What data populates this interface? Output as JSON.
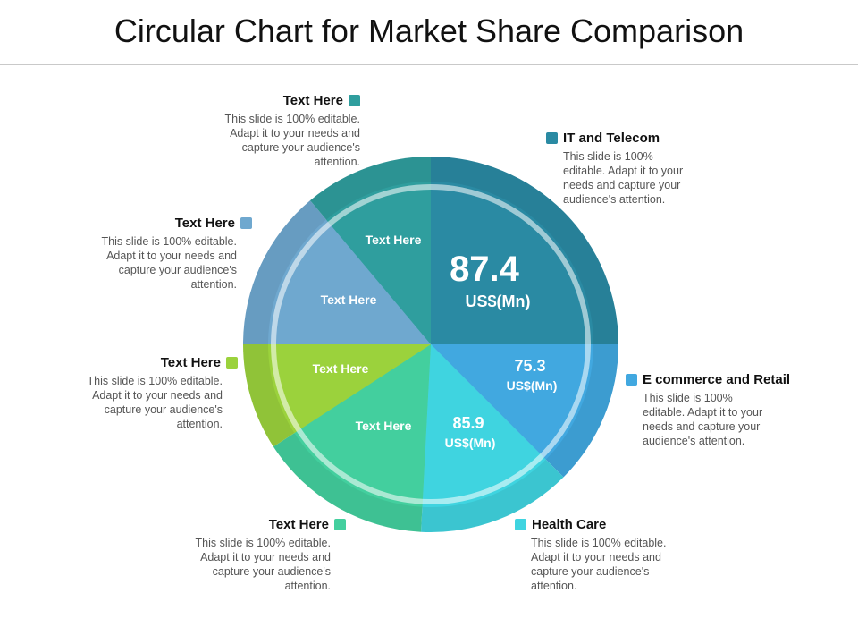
{
  "title": "Circular Chart for Market Share Comparison",
  "chart_data": {
    "type": "pie",
    "slices": [
      {
        "key": "it",
        "label": "Text Here",
        "value": 87.4,
        "unit": "US$(Mn)",
        "color": "#2a8aa3"
      },
      {
        "key": "ecom",
        "label": "Text Here",
        "value": 75.3,
        "unit": "US$(Mn)",
        "color": "#41a8e0"
      },
      {
        "key": "health",
        "label": "Text Here",
        "value": 85.9,
        "unit": "US$(Mn)",
        "color": "#3fd4e0"
      },
      {
        "key": "green",
        "label": "Text Here",
        "value": null,
        "unit": "",
        "color": "#43cf9e"
      },
      {
        "key": "lime",
        "label": "Text Here",
        "value": null,
        "unit": "",
        "color": "#9bd23c"
      },
      {
        "key": "blue",
        "label": "Text Here",
        "value": null,
        "unit": "",
        "color": "#6fa8cf"
      },
      {
        "key": "teal",
        "label": "Text Here",
        "value": null,
        "unit": "",
        "color": "#2f9e9e"
      }
    ]
  },
  "callouts": [
    {
      "key": "teal",
      "title": "Text Here",
      "body": "This slide is 100% editable. Adapt it to your needs and capture your audience's attention.",
      "color": "#2f9e9e"
    },
    {
      "key": "it",
      "title": "IT and Telecom",
      "body": "This slide is 100% editable. Adapt it to your needs and capture your audience's attention.",
      "color": "#2a8aa3"
    },
    {
      "key": "blue",
      "title": "Text Here",
      "body": "This slide is 100% editable. Adapt it to your needs and capture your audience's attention.",
      "color": "#6fa8cf"
    },
    {
      "key": "lime",
      "title": "Text Here",
      "body": "This slide is 100% editable. Adapt it to your needs and capture your audience's attention.",
      "color": "#9bd23c"
    },
    {
      "key": "ecom",
      "title": "E commerce and Retail",
      "body": "This slide is 100% editable. Adapt it to your needs and capture your audience's attention.",
      "color": "#41a8e0"
    },
    {
      "key": "green",
      "title": "Text Here",
      "body": "This slide is 100% editable. Adapt it to your needs and capture your audience's attention.",
      "color": "#43cf9e"
    },
    {
      "key": "health",
      "title": "Health Care",
      "body": "This slide is 100% editable. Adapt it to your needs and capture your audience's attention.",
      "color": "#3fd4e0"
    }
  ]
}
